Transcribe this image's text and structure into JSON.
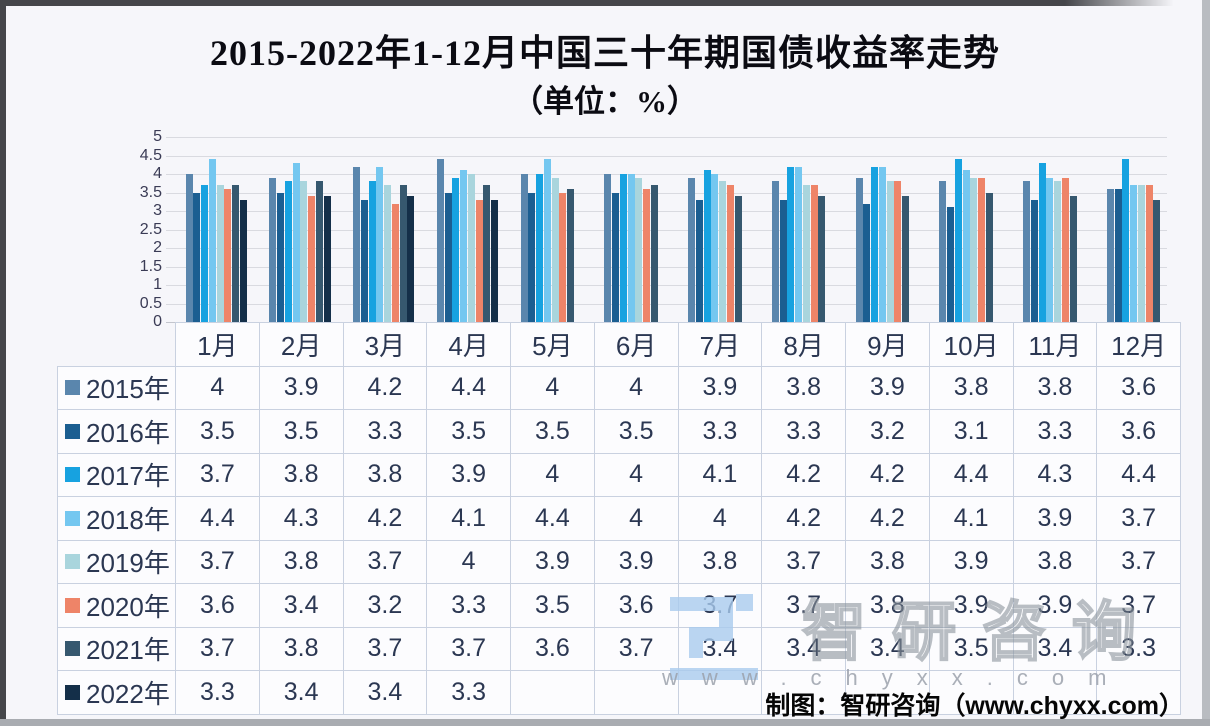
{
  "title": {
    "line1": "2015-2022年1-12月中国三十年期国债收益率走势",
    "line2": "（单位：%）"
  },
  "chart_data": {
    "type": "bar",
    "categories": [
      "1月",
      "2月",
      "3月",
      "4月",
      "5月",
      "6月",
      "7月",
      "8月",
      "9月",
      "10月",
      "11月",
      "12月"
    ],
    "series": [
      {
        "name": "2015年",
        "color": "#5a86ad",
        "values": [
          4,
          3.9,
          4.2,
          4.4,
          4,
          4,
          3.9,
          3.8,
          3.9,
          3.8,
          3.8,
          3.6
        ]
      },
      {
        "name": "2016年",
        "color": "#1b5e91",
        "values": [
          3.5,
          3.5,
          3.3,
          3.5,
          3.5,
          3.5,
          3.3,
          3.3,
          3.2,
          3.1,
          3.3,
          3.6
        ]
      },
      {
        "name": "2017年",
        "color": "#17a2e0",
        "values": [
          3.7,
          3.8,
          3.8,
          3.9,
          4,
          4,
          4.1,
          4.2,
          4.2,
          4.4,
          4.3,
          4.4
        ]
      },
      {
        "name": "2018年",
        "color": "#74c7f0",
        "values": [
          4.4,
          4.3,
          4.2,
          4.1,
          4.4,
          4,
          4,
          4.2,
          4.2,
          4.1,
          3.9,
          3.7
        ]
      },
      {
        "name": "2019年",
        "color": "#a9d5dd",
        "values": [
          3.7,
          3.8,
          3.7,
          4,
          3.9,
          3.9,
          3.8,
          3.7,
          3.8,
          3.9,
          3.8,
          3.7
        ]
      },
      {
        "name": "2020年",
        "color": "#ee8468",
        "values": [
          3.6,
          3.4,
          3.2,
          3.3,
          3.5,
          3.6,
          3.7,
          3.7,
          3.8,
          3.9,
          3.9,
          3.7
        ]
      },
      {
        "name": "2021年",
        "color": "#36586f",
        "values": [
          3.7,
          3.8,
          3.7,
          3.7,
          3.6,
          3.7,
          3.4,
          3.4,
          3.4,
          3.5,
          3.4,
          3.3
        ]
      },
      {
        "name": "2022年",
        "color": "#142f49",
        "values": [
          3.3,
          3.4,
          3.4,
          3.3,
          null,
          null,
          null,
          null,
          null,
          null,
          null,
          null
        ]
      }
    ],
    "ylim": [
      0,
      5
    ],
    "ytick_step": 0.5,
    "yticks": [
      "0",
      "0.5",
      "1",
      "1.5",
      "2",
      "2.5",
      "3",
      "3.5",
      "4",
      "4.5",
      "5"
    ],
    "grid": true,
    "legend_position": "table-row-headers",
    "title": "2015-2022年1-12月中国三十年期国债收益率走势",
    "subtitle": "（单位：%）",
    "xlabel": "",
    "ylabel": ""
  },
  "watermark": {
    "brand": "智研咨询",
    "url_spaced": "www.chyxx.com",
    "logo": "ziyan-logo",
    "logo_color": "#a9cbee",
    "text_color": "#8b929b"
  },
  "credit": "制图：智研咨询（www.chyxx.com）"
}
